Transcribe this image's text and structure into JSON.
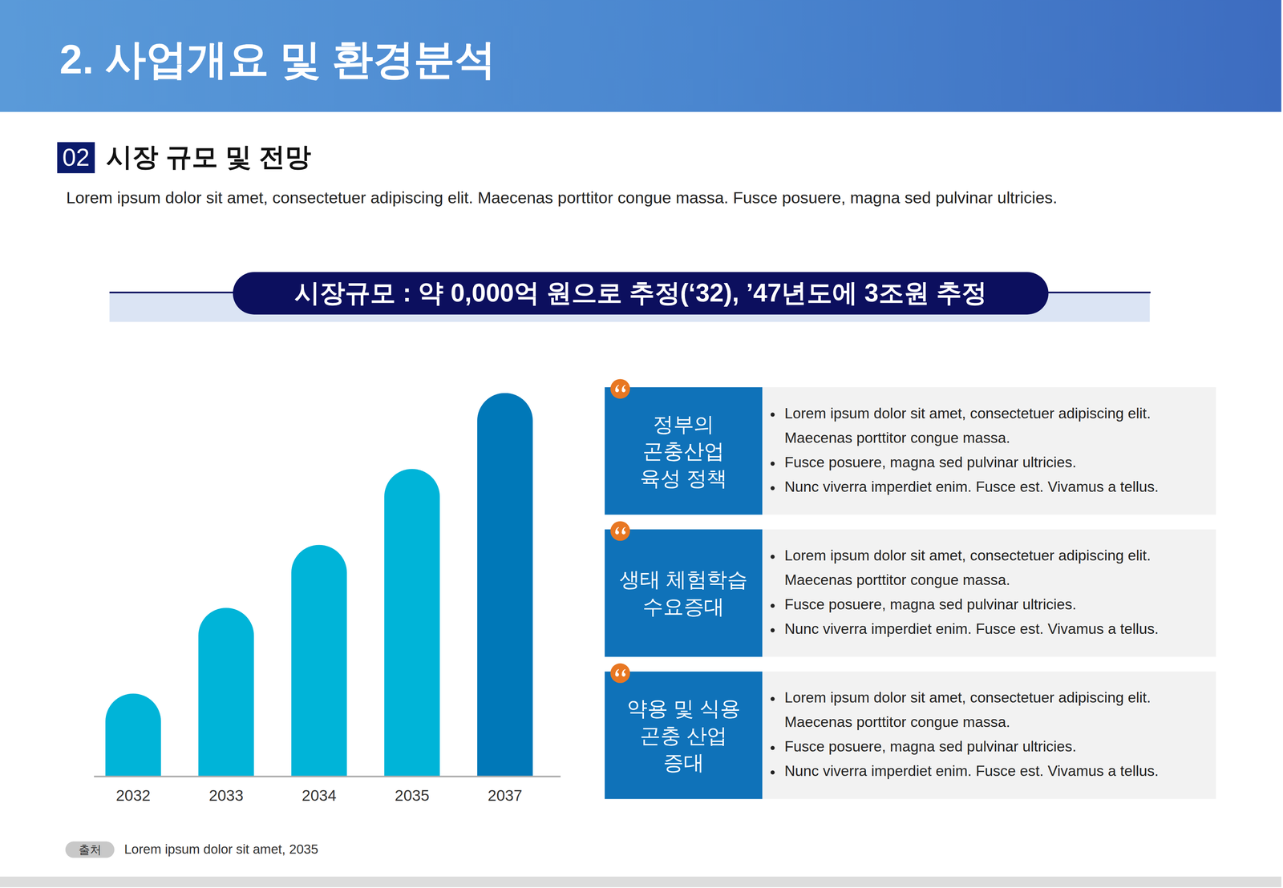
{
  "header": {
    "title": "2. 사업개요 및 환경분석"
  },
  "section": {
    "number": "02",
    "title": "시장 규모 및 전망",
    "description": "Lorem ipsum dolor sit amet, consectetuer adipiscing elit. Maecenas porttitor congue massa. Fusce posuere, magna sed pulvinar ultricies."
  },
  "banner": {
    "text": "시장규모 : 약 0,000억 원으로 추정(‘32), ’47년도에 3조원 추정"
  },
  "chart_data": {
    "type": "bar",
    "categories": [
      "2032",
      "2033",
      "2034",
      "2035",
      "2037"
    ],
    "values": [
      10.1,
      20.6,
      28.3,
      37.6,
      46.9
    ],
    "colors": [
      "#00b4d8",
      "#00b4d8",
      "#00b4d8",
      "#00b4d8",
      "#0078b8"
    ],
    "ylim": [
      0,
      46.9
    ],
    "tick_labels": "x"
  },
  "items": [
    {
      "label": [
        "정부의",
        "곤충산업",
        "육성 정책"
      ],
      "bullets": [
        "Lorem ipsum dolor sit amet, consectetuer adipiscing elit. Maecenas porttitor congue massa.",
        "Fusce posuere, magna sed pulvinar ultricies.",
        "Nunc viverra imperdiet enim. Fusce est. Vivamus a tellus."
      ]
    },
    {
      "label": [
        "생태 체험학습",
        "수요증대"
      ],
      "bullets": [
        "Lorem ipsum dolor sit amet, consectetuer adipiscing elit. Maecenas porttitor congue massa.",
        "Fusce posuere, magna sed pulvinar ultricies.",
        "Nunc viverra imperdiet enim. Fusce est. Vivamus a tellus."
      ]
    },
    {
      "label": [
        "약용 및 식용",
        "곤충 산업",
        "증대"
      ],
      "bullets": [
        "Lorem ipsum dolor sit amet, consectetuer adipiscing elit. Maecenas porttitor congue massa.",
        "Fusce posuere, magna sed pulvinar ultricies.",
        "Nunc viverra imperdiet enim. Fusce est. Vivamus a tellus."
      ]
    }
  ],
  "source": {
    "tag": "출처",
    "text": "Lorem ipsum dolor sit amet, 2035"
  }
}
